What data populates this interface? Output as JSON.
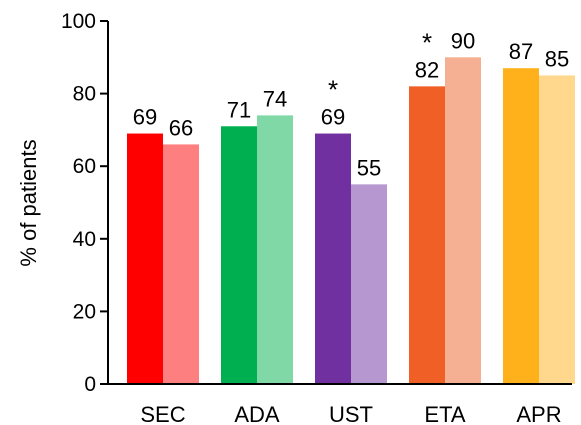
{
  "chart_data": {
    "type": "bar",
    "ylabel": "% of patients",
    "xlabel": "",
    "ylim": [
      0,
      100
    ],
    "yticks": [
      0,
      20,
      40,
      60,
      80,
      100
    ],
    "grid": false,
    "legend": "none",
    "star_symbol": "*",
    "categories": [
      {
        "label": "SEC",
        "bars": [
          {
            "value": 69,
            "color": "#fe0000",
            "marked": false
          },
          {
            "value": 66,
            "color": "#fe7f7f",
            "marked": false
          }
        ]
      },
      {
        "label": "ADA",
        "bars": [
          {
            "value": 71,
            "color": "#00b050",
            "marked": false
          },
          {
            "value": 74,
            "color": "#80d8a6",
            "marked": false
          }
        ]
      },
      {
        "label": "UST",
        "bars": [
          {
            "value": 69,
            "color": "#7030a0",
            "marked": true
          },
          {
            "value": 55,
            "color": "#b697d0",
            "marked": false
          }
        ]
      },
      {
        "label": "ETA",
        "bars": [
          {
            "value": 82,
            "color": "#f06026",
            "marked": true
          },
          {
            "value": 90,
            "color": "#f5af92",
            "marked": false
          }
        ]
      },
      {
        "label": "APR",
        "bars": [
          {
            "value": 87,
            "color": "#ffb11c",
            "marked": false
          },
          {
            "value": 85,
            "color": "#ffd88d",
            "marked": false
          }
        ]
      }
    ]
  }
}
